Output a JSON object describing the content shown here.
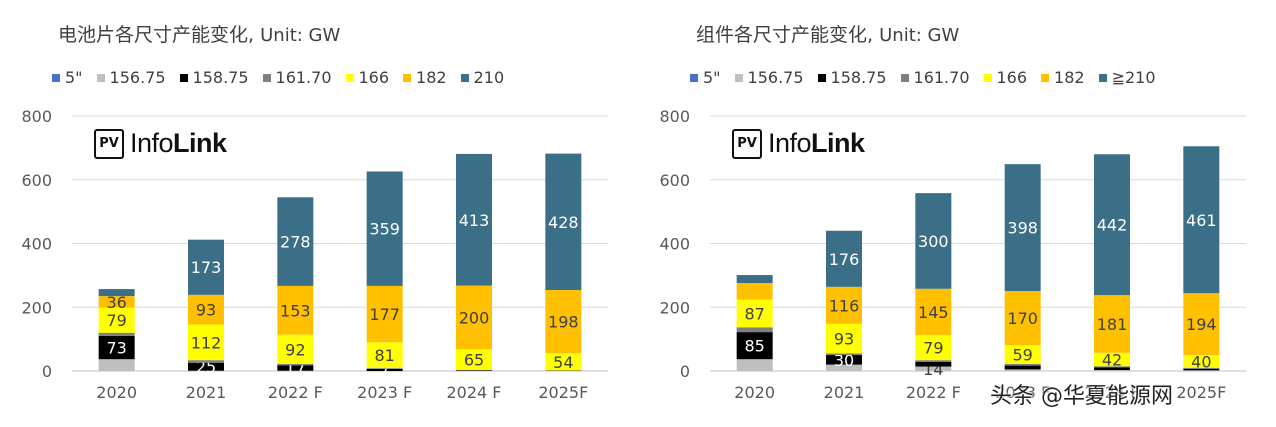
{
  "watermark": "头条 @华夏能源网",
  "chart_data": [
    {
      "type": "bar",
      "stacked": true,
      "title": "电池片各尺寸产能变化",
      "unit": "Unit: GW",
      "logo": {
        "box": "PV",
        "text_light": "Info",
        "text_bold": "Link"
      },
      "categories": [
        "2020",
        "2021",
        "2022 F",
        "2023 F",
        "2024 F",
        "2025F"
      ],
      "ylim": [
        0,
        800
      ],
      "yticks": [
        0,
        200,
        400,
        600,
        800
      ],
      "grid": true,
      "legend_position": "top",
      "series": [
        {
          "name": "5\"",
          "color": "#4472c4",
          "values": [
            0,
            0,
            0,
            0,
            0,
            0
          ],
          "labels": [
            null,
            null,
            null,
            null,
            null,
            null
          ],
          "label_color": "#ffffff"
        },
        {
          "name": "156.75",
          "color": "#bfbfbf",
          "values": [
            37,
            1,
            1,
            0,
            0,
            0
          ],
          "labels": [
            null,
            null,
            null,
            null,
            null,
            null
          ],
          "label_color": "#000000"
        },
        {
          "name": "158.75",
          "color": "#000000",
          "values": [
            73,
            25,
            17,
            7,
            2,
            1
          ],
          "labels": [
            "73",
            "25",
            "17",
            "7",
            null,
            null
          ],
          "label_color": "#ffffff"
        },
        {
          "name": "161.70",
          "color": "#7f7f7f",
          "values": [
            10,
            8,
            4,
            2,
            1,
            1
          ],
          "labels": [
            null,
            null,
            null,
            null,
            null,
            null
          ],
          "label_color": "#ffffff"
        },
        {
          "name": "166",
          "color": "#ffff00",
          "values": [
            79,
            112,
            92,
            81,
            65,
            54
          ],
          "labels": [
            "79",
            "112",
            "92",
            "81",
            "65",
            "54"
          ],
          "label_color": "#404040"
        },
        {
          "name": "182",
          "color": "#ffc000",
          "values": [
            36,
            93,
            153,
            177,
            200,
            198
          ],
          "labels": [
            "36",
            "93",
            "153",
            "177",
            "200",
            "198"
          ],
          "label_color": "#404040"
        },
        {
          "name": "210",
          "color": "#3a6f87",
          "values": [
            22,
            173,
            278,
            359,
            413,
            428
          ],
          "labels": [
            null,
            "173",
            "278",
            "359",
            "413",
            "428"
          ],
          "label_color": "#ffffff"
        }
      ]
    },
    {
      "type": "bar",
      "stacked": true,
      "title": "组件各尺寸产能变化",
      "unit": "Unit: GW",
      "logo": {
        "box": "PV",
        "text_light": "Info",
        "text_bold": "Link"
      },
      "categories": [
        "2020",
        "2021",
        "2022 F",
        "2023 F",
        "2024 F",
        "2025F"
      ],
      "ylim": [
        0,
        800
      ],
      "yticks": [
        0,
        200,
        400,
        600,
        800
      ],
      "grid": true,
      "legend_position": "top",
      "series": [
        {
          "name": "5\"",
          "color": "#4472c4",
          "values": [
            0,
            0,
            0,
            0,
            0,
            0
          ],
          "labels": [
            null,
            null,
            null,
            null,
            null,
            null
          ],
          "label_color": "#ffffff"
        },
        {
          "name": "156.75",
          "color": "#bfbfbf",
          "values": [
            37,
            20,
            14,
            5,
            3,
            2
          ],
          "labels": [
            null,
            null,
            "14",
            null,
            null,
            null
          ],
          "label_color": "#404040"
        },
        {
          "name": "158.75",
          "color": "#000000",
          "values": [
            85,
            30,
            15,
            12,
            8,
            5
          ],
          "labels": [
            "85",
            "30",
            null,
            null,
            null,
            null
          ],
          "label_color": "#ffffff"
        },
        {
          "name": "161.70",
          "color": "#7f7f7f",
          "values": [
            15,
            5,
            5,
            5,
            4,
            3
          ],
          "labels": [
            null,
            null,
            null,
            null,
            null,
            null
          ],
          "label_color": "#ffffff"
        },
        {
          "name": "166",
          "color": "#ffff00",
          "values": [
            87,
            93,
            79,
            59,
            42,
            40
          ],
          "labels": [
            "87",
            "93",
            "79",
            "59",
            "42",
            "40"
          ],
          "label_color": "#404040"
        },
        {
          "name": "182",
          "color": "#ffc000",
          "values": [
            52,
            116,
            145,
            170,
            181,
            194
          ],
          "labels": [
            null,
            "116",
            "145",
            "170",
            "181",
            "194"
          ],
          "label_color": "#404040"
        },
        {
          "name": "≧210",
          "color": "#3a6f87",
          "values": [
            25,
            176,
            300,
            398,
            442,
            461
          ],
          "labels": [
            null,
            "176",
            "300",
            "398",
            "442",
            "461"
          ],
          "label_color": "#ffffff"
        }
      ]
    }
  ]
}
